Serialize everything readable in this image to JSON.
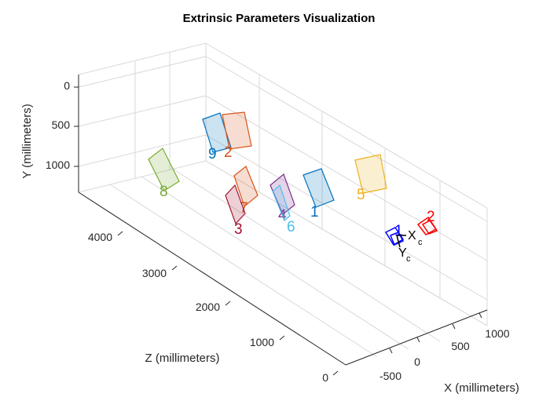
{
  "chart_data": {
    "type": "scatter3d",
    "title": "Extrinsic Parameters Visualization",
    "xlabel": "X (millimeters)",
    "ylabel": "Y (millimeters)",
    "zlabel": "Z (millimeters)",
    "xticks": [
      "-500",
      "0",
      "500",
      "1000"
    ],
    "yticks": [
      "0",
      "500",
      "1000"
    ],
    "zticks": [
      "0",
      "1000",
      "2000",
      "3000",
      "4000"
    ],
    "grid": true,
    "camera": {
      "labels": [
        "X",
        "Y"
      ],
      "subscript": "c",
      "color": "#0000ff"
    },
    "patterns": [
      {
        "label": "1",
        "color": "#0072bd",
        "x": 650,
        "y": 500,
        "z": 2200
      },
      {
        "label": "2",
        "color": "#d95319",
        "x": -150,
        "y": 250,
        "z": 3100
      },
      {
        "label": "3",
        "color": "#a2142f",
        "x": 0,
        "y": 980,
        "z": 2700
      },
      {
        "label": "4",
        "color": "#7e2f8e",
        "x": 250,
        "y": 800,
        "z": 2400
      },
      {
        "label": "5",
        "color": "#edb120",
        "x": 1150,
        "y": 300,
        "z": 2050
      },
      {
        "label": "6",
        "color": "#4dbeee",
        "x": 200,
        "y": 980,
        "z": 2300
      },
      {
        "label": "7",
        "color": "#d95319",
        "x": 0,
        "y": 900,
        "z": 2750
      },
      {
        "label": "8",
        "color": "#77ac30",
        "x": -600,
        "y": 650,
        "z": 3800
      },
      {
        "label": "9",
        "color": "#0072bd",
        "x": -250,
        "y": 250,
        "z": 3200
      }
    ],
    "extra_labels": [
      {
        "label": "1",
        "color": "#0000ff"
      },
      {
        "label": "2",
        "color": "#ff0000"
      }
    ]
  }
}
